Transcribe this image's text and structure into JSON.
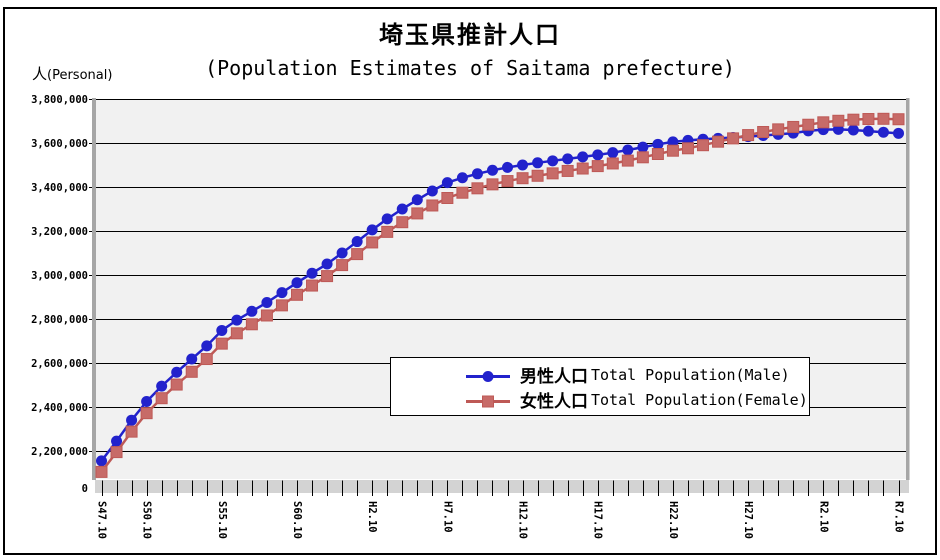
{
  "colors": {
    "background": "#FFFFFF",
    "border": "#000000",
    "plot_background": "#F1F1F1",
    "axis_band": "#D3D3D3",
    "axis_bar": "#A6A6A6",
    "gridline": "#000000",
    "text": "#000000"
  },
  "chart_data": {
    "type": "line",
    "title": "埼玉県推計人口",
    "subtitle": "(Population Estimates of Saitama prefecture)",
    "y_unit_jp": "人",
    "y_unit_en": "(Personal)",
    "grid": "horizontal-major",
    "legend_position": "inside-lower-center",
    "y_axis": {
      "tick_labels": [
        "3,800,000",
        "3,600,000",
        "3,400,000",
        "3,200,000",
        "3,000,000",
        "2,800,000",
        "2,600,000",
        "2,400,000",
        "2,200,000"
      ],
      "tick_values": [
        3800000,
        3600000,
        3400000,
        3200000,
        3000000,
        2800000,
        2600000,
        2400000,
        2200000
      ],
      "origin_label": "0",
      "axis_break_at_origin": true
    },
    "x_axis": {
      "tick_labels": [
        "S47.10",
        "S50.10",
        "S55.10",
        "S60.10",
        "H2.10",
        "H7.10",
        "H12.10",
        "H17.10",
        "H22.10",
        "H27.10",
        "R2.10",
        "R7.10"
      ],
      "tick_point_indices": [
        0,
        3,
        8,
        13,
        18,
        23,
        28,
        33,
        38,
        43,
        48,
        53
      ],
      "points_per_series": 54,
      "minor_tick_every_point": true
    },
    "series": [
      {
        "name_jp": "男性人口",
        "name_en": "Total Population(Male)",
        "marker": "circle",
        "line_color": "#2222CC",
        "marker_color": "#2222CC",
        "values": [
          2155000,
          2245000,
          2340000,
          2425000,
          2495000,
          2558000,
          2618000,
          2678000,
          2748000,
          2795000,
          2835000,
          2875000,
          2920000,
          2965000,
          3008000,
          3050000,
          3100000,
          3152000,
          3205000,
          3255000,
          3300000,
          3342000,
          3382000,
          3420000,
          3442000,
          3460000,
          3476000,
          3489000,
          3500000,
          3510000,
          3519000,
          3528000,
          3537000,
          3546000,
          3556000,
          3568000,
          3581000,
          3594000,
          3605000,
          3612000,
          3617000,
          3621000,
          3625000,
          3629000,
          3634000,
          3639000,
          3645000,
          3655000,
          3661000,
          3662000,
          3659000,
          3654000,
          3649000,
          3644000
        ]
      },
      {
        "name_jp": "女性人口",
        "name_en": "Total Population(Female)",
        "marker": "square",
        "line_color": "#BE5956",
        "marker_color": "#C76B68",
        "values": [
          2105000,
          2195000,
          2288000,
          2372000,
          2440000,
          2502000,
          2560000,
          2618000,
          2688000,
          2735000,
          2776000,
          2816000,
          2862000,
          2910000,
          2952000,
          2995000,
          3045000,
          3095000,
          3148000,
          3196000,
          3240000,
          3280000,
          3316000,
          3350000,
          3374000,
          3394000,
          3412000,
          3427000,
          3440000,
          3451000,
          3462000,
          3473000,
          3484000,
          3495000,
          3507000,
          3520000,
          3535000,
          3550000,
          3565000,
          3576000,
          3590000,
          3606000,
          3621000,
          3636000,
          3650000,
          3662000,
          3673000,
          3683000,
          3694000,
          3701000,
          3706000,
          3709000,
          3710000,
          3708000
        ]
      }
    ]
  }
}
